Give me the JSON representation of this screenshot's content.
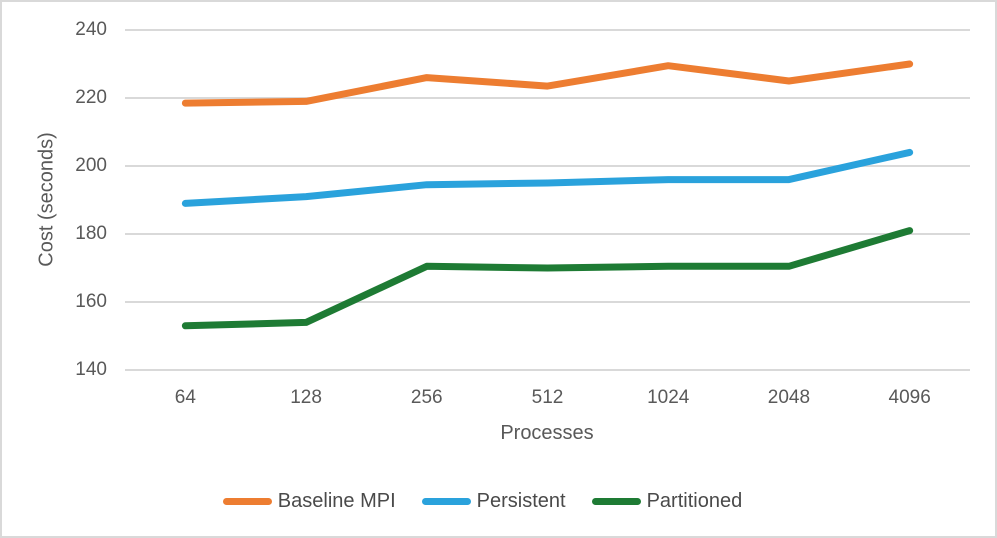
{
  "chart_data": {
    "type": "line",
    "title": "",
    "xlabel": "Processes",
    "ylabel": "Cost (seconds)",
    "categories": [
      "64",
      "128",
      "256",
      "512",
      "1024",
      "2048",
      "4096"
    ],
    "series": [
      {
        "name": "Baseline MPI",
        "color": "#ED7D31",
        "values": [
          218.5,
          219,
          226,
          223.5,
          229.5,
          225,
          230
        ]
      },
      {
        "name": "Persistent",
        "color": "#2AA2DC",
        "values": [
          189,
          191,
          194.5,
          195,
          196,
          196,
          204
        ]
      },
      {
        "name": "Partitioned",
        "color": "#1E7B34",
        "values": [
          153,
          154,
          170.5,
          170,
          170.5,
          170.5,
          181
        ]
      }
    ],
    "ylim": [
      140,
      240
    ],
    "yticks": [
      140,
      160,
      180,
      200,
      220,
      240
    ],
    "grid": true,
    "legend_position": "bottom"
  },
  "style_colors": {
    "gridline": "#D9D9D9",
    "axis_text": "#595959",
    "legend_text": "#4a4a4a",
    "frame_border": "#D9D9D9",
    "background": "#ffffff"
  }
}
